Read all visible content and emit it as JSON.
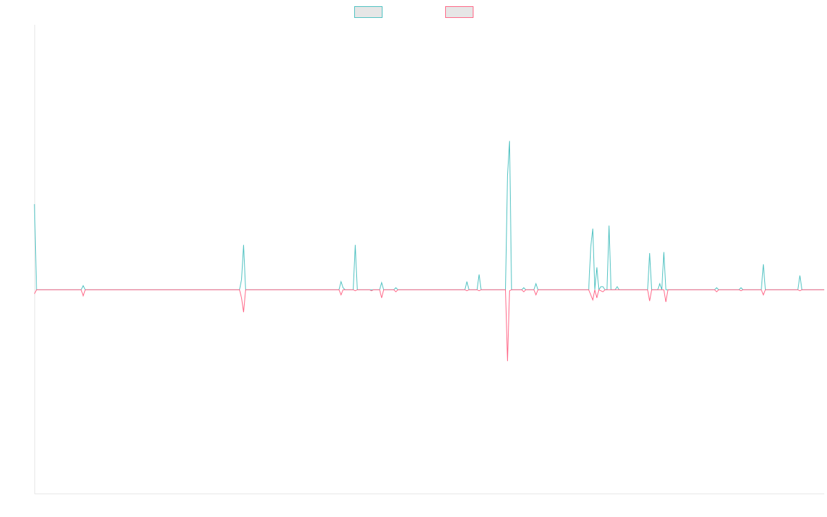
{
  "chart_data": {
    "type": "line",
    "title": "",
    "xlabel": "",
    "ylabel": "",
    "grid": false,
    "legend_position": "top-center",
    "ylim": [
      -100,
      130
    ],
    "xlim": [
      0,
      389
    ],
    "series": [
      {
        "color": "#4bc0c0",
        "points": [
          [
            0,
            42
          ],
          [
            1,
            0
          ],
          [
            23,
            0
          ],
          [
            24,
            2
          ],
          [
            25,
            0
          ],
          [
            101,
            0
          ],
          [
            102,
            5
          ],
          [
            103,
            22
          ],
          [
            104,
            0
          ],
          [
            150,
            0
          ],
          [
            151,
            4
          ],
          [
            152,
            1
          ],
          [
            153,
            0
          ],
          [
            157,
            0
          ],
          [
            158,
            22
          ],
          [
            159,
            0
          ],
          [
            170,
            0
          ],
          [
            171,
            3.5
          ],
          [
            172,
            0
          ],
          [
            177,
            0
          ],
          [
            178,
            1
          ],
          [
            179,
            0
          ],
          [
            212,
            0
          ],
          [
            213,
            4
          ],
          [
            214,
            0
          ],
          [
            218,
            0
          ],
          [
            219,
            7.5
          ],
          [
            220,
            0
          ],
          [
            232,
            0
          ],
          [
            233,
            56
          ],
          [
            234,
            73
          ],
          [
            235,
            0
          ],
          [
            240,
            0
          ],
          [
            241,
            1
          ],
          [
            242,
            0
          ],
          [
            246,
            0
          ],
          [
            247,
            3
          ],
          [
            248,
            0
          ],
          [
            273,
            0
          ],
          [
            274,
            21
          ],
          [
            275,
            30
          ],
          [
            276,
            0
          ],
          [
            277,
            11
          ],
          [
            278,
            0
          ],
          [
            279,
            1.5
          ],
          [
            280,
            1.5
          ],
          [
            281,
            0
          ],
          [
            282,
            0
          ],
          [
            283,
            31.5
          ],
          [
            284,
            0
          ],
          [
            286,
            0
          ],
          [
            287,
            1.5
          ],
          [
            288,
            0
          ],
          [
            302,
            0
          ],
          [
            303,
            18
          ],
          [
            304,
            0
          ],
          [
            307,
            0
          ],
          [
            308,
            3
          ],
          [
            309,
            0
          ],
          [
            310,
            18.5
          ],
          [
            311,
            0
          ],
          [
            335,
            0
          ],
          [
            336,
            1
          ],
          [
            337,
            0
          ],
          [
            347,
            0
          ],
          [
            348,
            1
          ],
          [
            349,
            0
          ],
          [
            358,
            0
          ],
          [
            359,
            12.5
          ],
          [
            360,
            0
          ],
          [
            376,
            0
          ],
          [
            377,
            7
          ],
          [
            378,
            0
          ],
          [
            389,
            0
          ]
        ]
      },
      {
        "color": "#ff6384",
        "points": [
          [
            0,
            -2
          ],
          [
            1,
            0
          ],
          [
            23,
            0
          ],
          [
            24,
            -3
          ],
          [
            25,
            0
          ],
          [
            101,
            0
          ],
          [
            102,
            -4
          ],
          [
            103,
            -11
          ],
          [
            104,
            0
          ],
          [
            150,
            0
          ],
          [
            151,
            -2.5
          ],
          [
            152,
            0
          ],
          [
            157,
            0
          ],
          [
            158,
            -0.5
          ],
          [
            159,
            0
          ],
          [
            165,
            0
          ],
          [
            166,
            -0.5
          ],
          [
            167,
            0
          ],
          [
            170,
            0
          ],
          [
            171,
            -4
          ],
          [
            172,
            0
          ],
          [
            177,
            0
          ],
          [
            178,
            -1
          ],
          [
            179,
            0
          ],
          [
            212,
            0
          ],
          [
            213,
            -0.5
          ],
          [
            214,
            0
          ],
          [
            218,
            0
          ],
          [
            219,
            -0.5
          ],
          [
            220,
            0
          ],
          [
            232,
            0
          ],
          [
            233,
            -35
          ],
          [
            234,
            -0.5
          ],
          [
            235,
            0
          ],
          [
            240,
            0
          ],
          [
            241,
            -1
          ],
          [
            242,
            0
          ],
          [
            246,
            0
          ],
          [
            247,
            -2.5
          ],
          [
            248,
            0
          ],
          [
            273,
            0
          ],
          [
            275,
            -5
          ],
          [
            276,
            0
          ],
          [
            277,
            -4
          ],
          [
            278,
            0
          ],
          [
            279,
            -0.5
          ],
          [
            280,
            -1
          ],
          [
            281,
            0
          ],
          [
            302,
            0
          ],
          [
            303,
            -5.5
          ],
          [
            304,
            0
          ],
          [
            310,
            0
          ],
          [
            311,
            -6
          ],
          [
            312,
            0
          ],
          [
            335,
            0
          ],
          [
            336,
            -1
          ],
          [
            337,
            0
          ],
          [
            347,
            0
          ],
          [
            348,
            -0.5
          ],
          [
            349,
            0
          ],
          [
            358,
            0
          ],
          [
            359,
            -2.5
          ],
          [
            360,
            0
          ],
          [
            376,
            0
          ],
          [
            377,
            -0.5
          ],
          [
            378,
            0
          ],
          [
            389,
            0
          ]
        ]
      }
    ]
  }
}
